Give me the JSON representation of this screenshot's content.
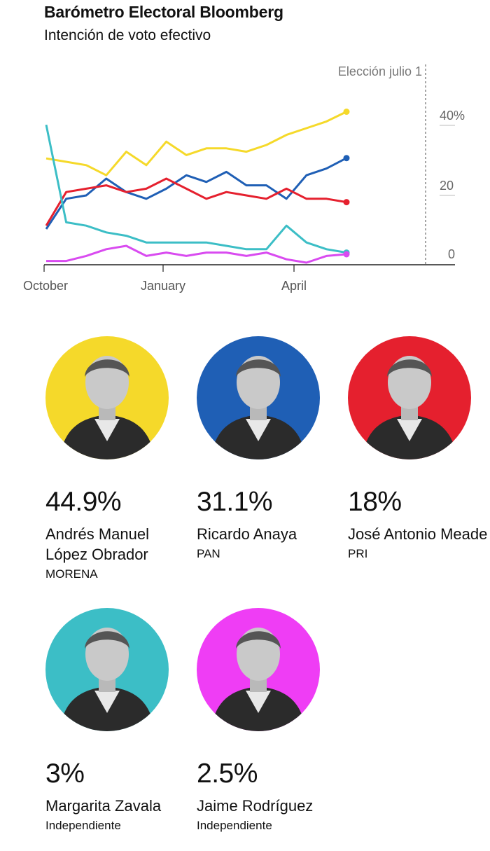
{
  "header": {
    "title": "Barómetro Electoral Bloomberg",
    "subtitle": "Intención de voto efectivo"
  },
  "chart_data": {
    "type": "line",
    "title": "Barómetro Electoral Bloomberg",
    "subtitle": "Intención de voto efectivo",
    "x_ticks": [
      "October",
      "January",
      "April"
    ],
    "y_ticks": [
      "0",
      "20",
      "40%"
    ],
    "ylim": [
      0,
      50
    ],
    "grid": false,
    "annotation": "Elección julio 1",
    "x": [
      "2017-10-01",
      "2017-10-15",
      "2017-11-01",
      "2017-11-15",
      "2017-12-01",
      "2017-12-15",
      "2018-01-01",
      "2018-01-15",
      "2018-02-01",
      "2018-02-15",
      "2018-03-01",
      "2018-03-15",
      "2018-04-01",
      "2018-04-15",
      "2018-05-01",
      "2018-05-15"
    ],
    "series": [
      {
        "key": "amlo",
        "color": "#f5d92a",
        "values": [
          31,
          30,
          29,
          26,
          33,
          29,
          36,
          32,
          34,
          34,
          33,
          35,
          38,
          40,
          42,
          44.9
        ]
      },
      {
        "key": "anaya",
        "color": "#1f5fb5",
        "values": [
          10,
          19,
          20,
          25,
          21,
          19,
          22,
          26,
          24,
          27,
          23,
          23,
          19,
          26,
          28,
          31.1
        ]
      },
      {
        "key": "meade",
        "color": "#e5202e",
        "values": [
          11,
          21,
          22,
          23,
          21,
          22,
          25,
          22,
          19,
          21,
          20,
          19,
          22,
          19,
          19,
          18
        ]
      },
      {
        "key": "zavala",
        "color": "#3cbec6",
        "values": [
          41,
          12,
          11,
          9,
          8,
          6,
          6,
          6,
          6,
          5,
          4,
          4,
          11,
          6,
          4,
          3
        ]
      },
      {
        "key": "bronco",
        "color": "#d94bf0",
        "values": [
          0.5,
          0.5,
          2,
          4,
          5,
          2,
          3,
          2,
          3,
          3,
          2,
          3,
          1,
          0,
          2,
          2.5
        ]
      }
    ]
  },
  "candidates": [
    {
      "pct": "44.9%",
      "name": "Andrés Manuel López Obrador",
      "party": "MORENA",
      "color": "#f5d92a"
    },
    {
      "pct": "31.1%",
      "name": "Ricardo Anaya",
      "party": "PAN",
      "color": "#1f5fb5"
    },
    {
      "pct": "18%",
      "name": "José Antonio Meade",
      "party": "PRI",
      "color": "#e5202e"
    },
    {
      "pct": "3%",
      "name": "Margarita Zavala",
      "party": "Independiente",
      "color": "#3cbec6"
    },
    {
      "pct": "2.5%",
      "name": "Jaime Rodríguez",
      "party": "Independiente",
      "color": "#ef3df5"
    }
  ]
}
